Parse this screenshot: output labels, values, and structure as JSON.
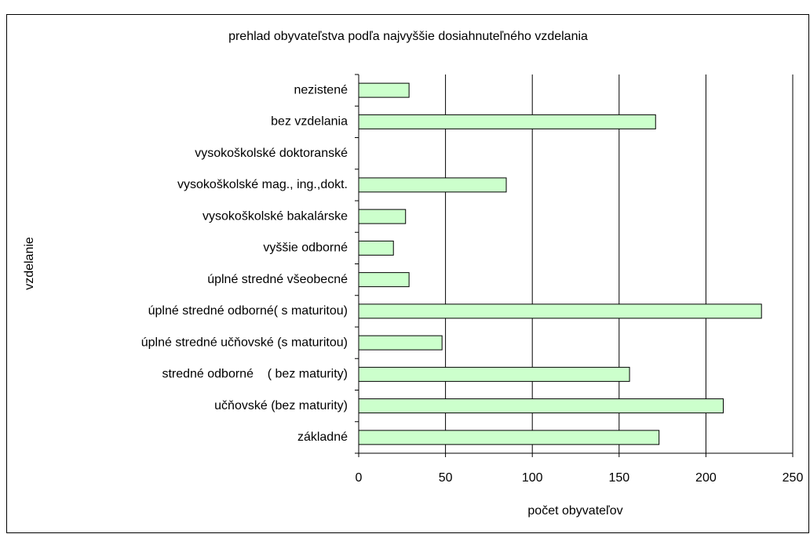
{
  "chart_data": {
    "type": "bar",
    "orientation": "horizontal",
    "title": "prehlad obyvateľstva podľa najvyššie dosiahnuteľného vzdelania",
    "xlabel": "počet obyvateľov",
    "ylabel": "vzdelanie",
    "categories": [
      "nezistené",
      "bez vzdelania",
      "vysokoškolské doktoranské",
      "vysokoškolské mag., ing.,dokt.",
      "vysokoškolské bakalárske",
      "vyššie odborné",
      "úplné stredné všeobecné",
      "úplné stredné odborné( s maturitou)",
      "úplné stredné učňovské (s maturitou)",
      "stredné odborné    ( bez maturity)",
      "učňovské (bez maturity)",
      "základné"
    ],
    "values": [
      29,
      171,
      0,
      85,
      27,
      20,
      29,
      232,
      48,
      156,
      210,
      173
    ],
    "color": "#ccffcc",
    "xlim": [
      0,
      250
    ],
    "xticks": [
      0,
      50,
      100,
      150,
      200,
      250
    ],
    "grid": true
  }
}
